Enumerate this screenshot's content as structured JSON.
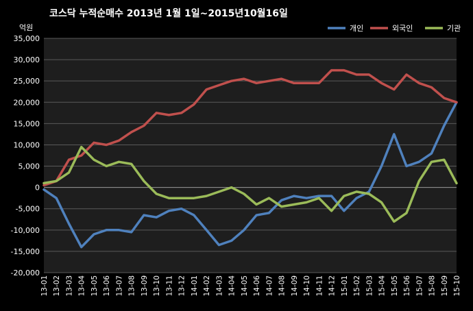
{
  "chart_data": {
    "type": "line",
    "title": "코스닥  누적순매수 2013년 1월 1일~2015년10월16일",
    "unit_label": "억원",
    "ylim": [
      -20000,
      35000
    ],
    "ytick_step": 5000,
    "y_tick_labels": [
      "35,000",
      "30,000",
      "25,000",
      "20,000",
      "15,000",
      "10,000",
      "5,000",
      "0",
      "-5,000",
      "-10,000",
      "-15,000",
      "-20,000"
    ],
    "x_tick_labels": [
      "13-01",
      "13-02",
      "13-03",
      "13-04",
      "13-05",
      "13-06",
      "13-07",
      "13-08",
      "13-09",
      "13-10",
      "13-11",
      "13-12",
      "14-01",
      "14-02",
      "14-03",
      "14-04",
      "14-05",
      "14-06",
      "14-07",
      "14-08",
      "14-09",
      "14-10",
      "14-11",
      "14-12",
      "15-01",
      "15-02",
      "15-03",
      "15-04",
      "15-05",
      "15-06",
      "15-07",
      "15-08",
      "15-09",
      "15-10"
    ],
    "grid": true,
    "legend_position": "top-right",
    "background": "#1e1e1e",
    "series": [
      {
        "name": "개인",
        "color": "#4f81bd",
        "values": [
          -500,
          -2500,
          -8500,
          -14000,
          -11000,
          -10000,
          -10000,
          -10500,
          -6500,
          -7000,
          -5500,
          -5000,
          -6500,
          -10000,
          -13500,
          -12500,
          -10000,
          -6500,
          -6000,
          -3000,
          -2000,
          -2500,
          -2000,
          -2000,
          -5500,
          -2500,
          -1000,
          5000,
          12500,
          5000,
          6000,
          8000,
          14500,
          20000
        ]
      },
      {
        "name": "외국인",
        "color": "#c0504d",
        "values": [
          500,
          1500,
          6500,
          7500,
          10500,
          10000,
          11000,
          13000,
          14500,
          17500,
          17000,
          17500,
          19500,
          23000,
          24000,
          25000,
          25500,
          24500,
          25000,
          25500,
          24500,
          24500,
          24500,
          27500,
          27500,
          26500,
          26500,
          24500,
          23000,
          26500,
          24500,
          23500,
          21000,
          20000
        ]
      },
      {
        "name": "기관",
        "color": "#9bbb59",
        "values": [
          1000,
          1500,
          3500,
          9500,
          6500,
          5000,
          6000,
          5500,
          1500,
          -1500,
          -2500,
          -2500,
          -2500,
          -2000,
          -1000,
          0,
          -1500,
          -4000,
          -2500,
          -4500,
          -4000,
          -3500,
          -2500,
          -5500,
          -2000,
          -1000,
          -1500,
          -3500,
          -8000,
          -6000,
          1500,
          6000,
          6500,
          1000
        ]
      }
    ]
  }
}
